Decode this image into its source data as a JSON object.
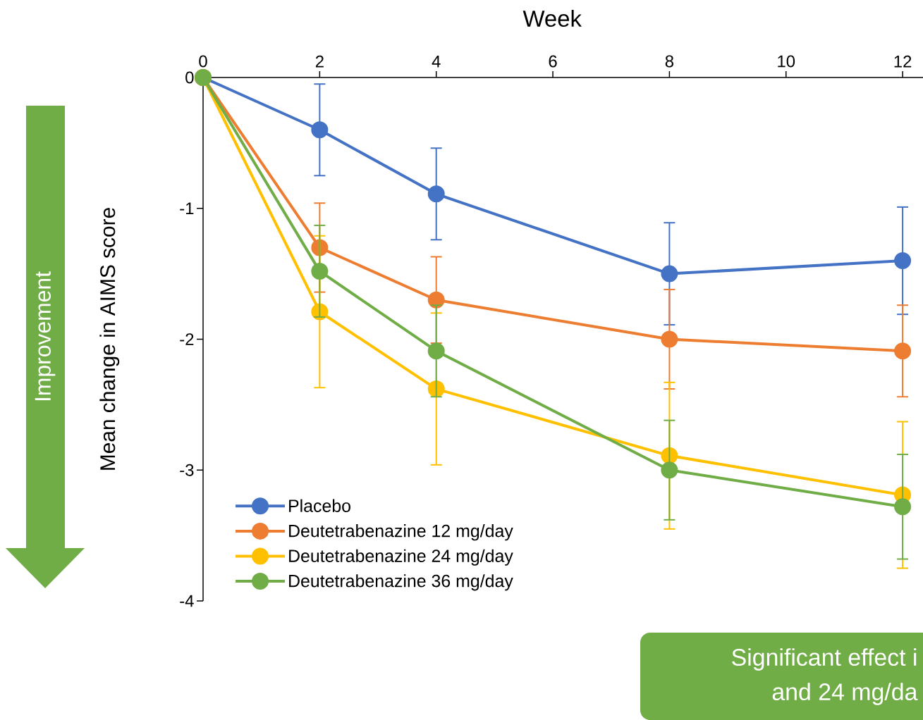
{
  "chart_data": {
    "type": "line",
    "xlabel": "Week",
    "ylabel": "Mean change in AIMS score",
    "x": [
      0,
      2,
      4,
      8,
      12
    ],
    "xlim": [
      0,
      12.35
    ],
    "ylim": [
      -4,
      0
    ],
    "xticks": [
      0,
      2,
      4,
      6,
      8,
      10,
      12
    ],
    "yticks": [
      -4,
      -3,
      -2,
      -1,
      0
    ],
    "marker": "circle",
    "legend": "bottom left",
    "series": [
      {
        "name": "Placebo",
        "color": "#4472c4",
        "values": [
          0,
          -0.4,
          -0.89,
          -1.5,
          -1.4
        ],
        "errors": [
          null,
          0.35,
          0.35,
          0.39,
          0.41
        ]
      },
      {
        "name": "Deutetrabenazine 12 mg/day",
        "color": "#ed7d31",
        "values": [
          0,
          -1.3,
          -1.7,
          -2.0,
          -2.09
        ],
        "errors": [
          null,
          0.34,
          0.33,
          0.38,
          0.35
        ]
      },
      {
        "name": "Deutetrabenazine 24 mg/day",
        "color": "#ffc000",
        "values": [
          0,
          -1.79,
          -2.38,
          -2.89,
          -3.19
        ],
        "errors": [
          null,
          0.58,
          0.58,
          0.56,
          0.56
        ]
      },
      {
        "name": "Deutetrabenazine 36 mg/day",
        "color": "#70ad47",
        "values": [
          0,
          -1.48,
          -2.09,
          -3.0,
          -3.28
        ],
        "errors": [
          null,
          0.35,
          0.35,
          0.38,
          0.4
        ]
      }
    ],
    "annotations": [
      "Improvement",
      "Significant effect i",
      "and 24 mg/da"
    ]
  }
}
